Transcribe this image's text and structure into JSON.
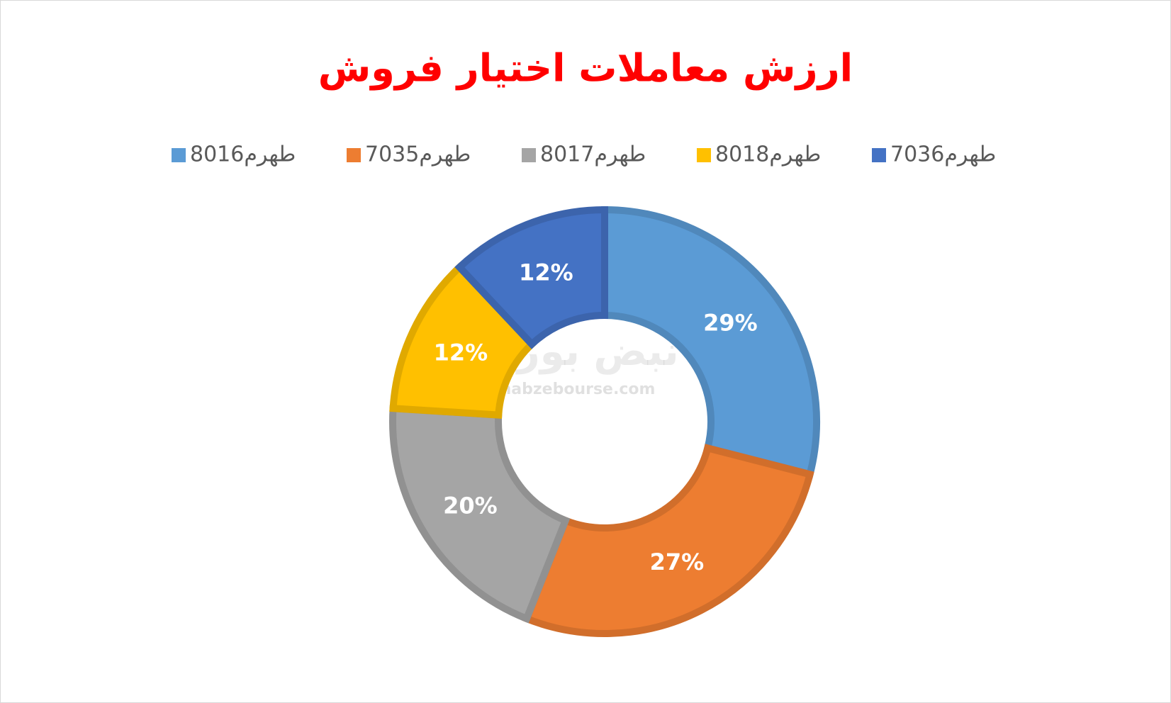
{
  "chart_data": {
    "type": "donut",
    "title": "ارزش معاملات اختیار فروش",
    "categories": [
      "طهرم8016",
      "طهرم7035",
      "طهرم8017",
      "طهرم8018",
      "طهرم7036"
    ],
    "values": [
      29,
      27,
      20,
      12,
      12
    ],
    "value_labels": [
      "29%",
      "27%",
      "20%",
      "12%",
      "12%"
    ],
    "colors": [
      "#5b9bd5",
      "#ed7d31",
      "#a5a5a5",
      "#ffc000",
      "#4472c4"
    ],
    "legend": "top",
    "watermark": [
      "نبض بورس",
      "nabzebourse.com"
    ]
  }
}
